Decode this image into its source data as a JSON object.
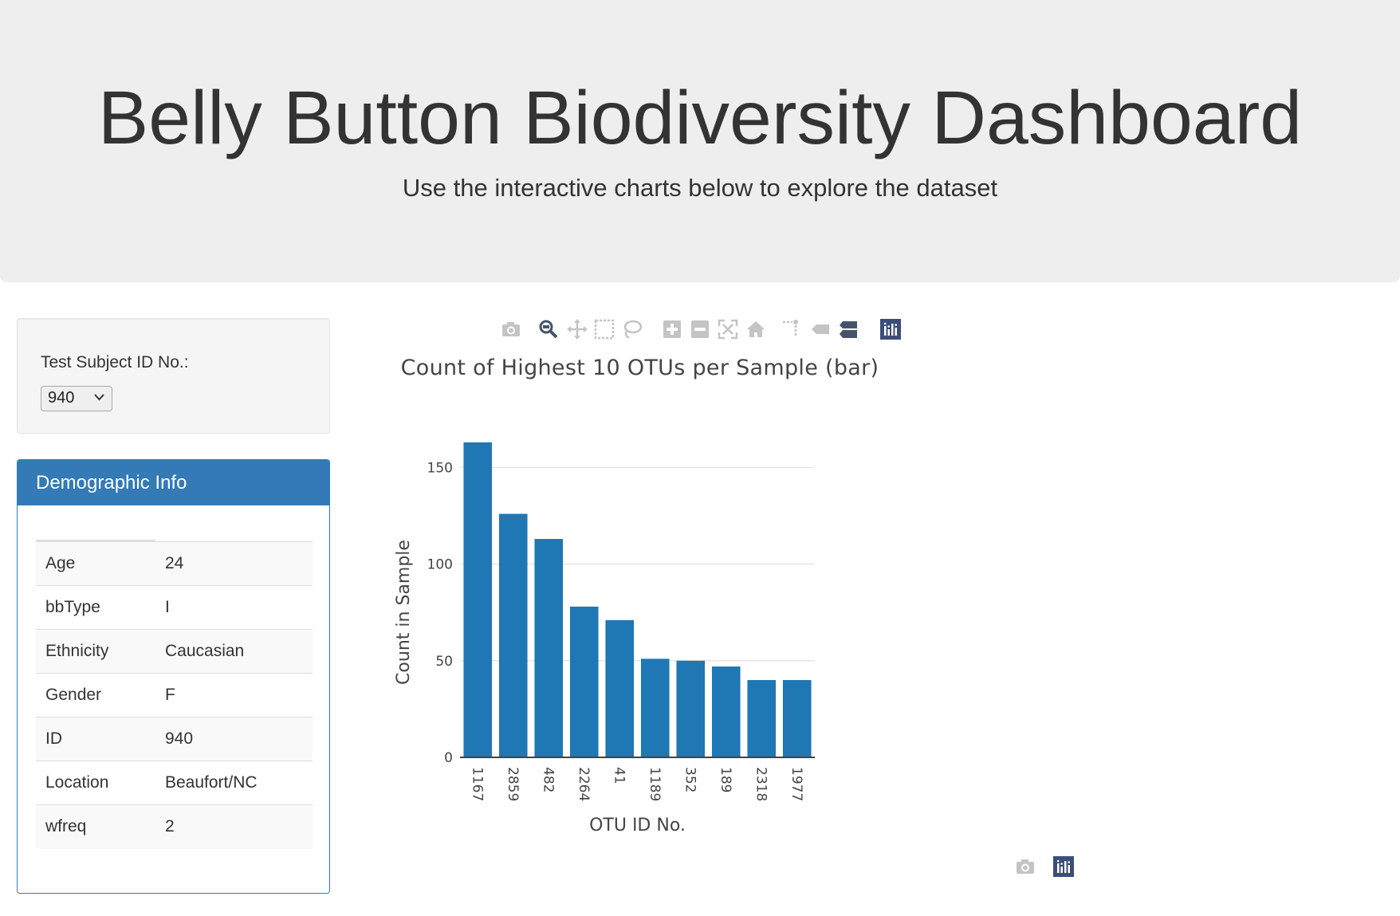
{
  "header": {
    "title": "Belly Button Biodiversity Dashboard",
    "subtitle": "Use the interactive charts below to explore the dataset"
  },
  "selector": {
    "label": "Test Subject ID No.:",
    "selected": "940"
  },
  "demographics": {
    "heading": "Demographic Info",
    "rows": [
      {
        "key": "Age",
        "value": "24"
      },
      {
        "key": "bbType",
        "value": "I"
      },
      {
        "key": "Ethnicity",
        "value": "Caucasian"
      },
      {
        "key": "Gender",
        "value": "F"
      },
      {
        "key": "ID",
        "value": "940"
      },
      {
        "key": "Location",
        "value": "Beaufort/NC"
      },
      {
        "key": "wfreq",
        "value": "2"
      }
    ]
  },
  "modebar_icons": [
    "camera-icon",
    "zoom-icon",
    "pan-icon",
    "box-select-icon",
    "lasso-select-icon",
    "zoom-in-icon",
    "zoom-out-icon",
    "autoscale-icon",
    "reset-axes-icon",
    "spike-lines-icon",
    "hover-closest-icon",
    "hover-compare-icon",
    "plotly-logo-icon"
  ],
  "colors": {
    "accent": "#337ab7",
    "bar": "#1f77b4",
    "jumbotron": "#eeeeee"
  },
  "chart_data": {
    "type": "bar",
    "title": "Count of Highest 10 OTUs per Sample (bar)",
    "xlabel": "OTU ID No.",
    "ylabel": "Count in Sample",
    "categories": [
      "1167",
      "2859",
      "482",
      "2264",
      "41",
      "1189",
      "352",
      "189",
      "2318",
      "1977"
    ],
    "values": [
      163,
      126,
      113,
      78,
      71,
      51,
      50,
      47,
      40,
      40
    ],
    "ylim": [
      0,
      165
    ],
    "yticks": [
      0,
      50,
      100,
      150
    ],
    "grid": true
  }
}
